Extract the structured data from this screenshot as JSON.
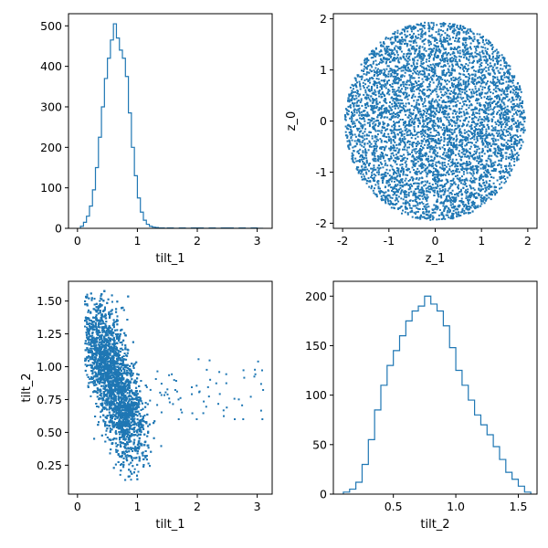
{
  "colors": {
    "series": "#1f77b4",
    "axes": "#000000",
    "background": "#ffffff"
  },
  "chart_data": [
    {
      "type": "histogram",
      "panel": "top-left",
      "histtype": "step",
      "xlabel": "tilt_1",
      "ylabel": "",
      "xlim": [
        -0.15,
        3.25
      ],
      "ylim": [
        0,
        530
      ],
      "xticks": [
        0,
        1,
        2,
        3
      ],
      "yticks": [
        0,
        100,
        200,
        300,
        400,
        500
      ],
      "bin_edges": [
        0.05,
        0.1,
        0.15,
        0.2,
        0.25,
        0.3,
        0.35,
        0.4,
        0.45,
        0.5,
        0.55,
        0.6,
        0.65,
        0.7,
        0.75,
        0.8,
        0.85,
        0.9,
        0.95,
        1.0,
        1.05,
        1.1,
        1.15,
        1.2,
        1.25,
        1.3,
        1.35,
        1.4,
        1.45,
        1.5,
        1.6,
        1.7,
        1.8,
        1.9,
        2.0,
        2.1,
        2.2,
        2.3,
        2.4,
        2.5,
        2.6,
        2.7,
        2.8,
        2.9,
        3.0,
        3.1
      ],
      "counts": [
        5,
        15,
        30,
        55,
        95,
        150,
        225,
        300,
        370,
        420,
        465,
        505,
        470,
        440,
        420,
        375,
        285,
        200,
        130,
        75,
        40,
        20,
        10,
        5,
        3,
        2,
        1,
        1,
        0,
        1,
        0,
        1,
        0,
        1,
        1,
        0,
        1,
        0,
        1,
        1,
        0,
        1,
        0,
        1,
        0
      ]
    },
    {
      "type": "scatter",
      "panel": "top-right",
      "xlabel": "z_1",
      "ylabel": "z_0",
      "xlim": [
        -2.2,
        2.2
      ],
      "ylim": [
        -2.1,
        2.1
      ],
      "xticks": [
        -2,
        -1,
        0,
        1,
        2
      ],
      "yticks": [
        -2,
        -1,
        0,
        1,
        2
      ],
      "distribution": {
        "shape": "disk",
        "center": [
          0.0,
          0.0
        ],
        "radius": 1.95,
        "points": 5200
      }
    },
    {
      "type": "scatter",
      "panel": "bottom-left",
      "xlabel": "tilt_1",
      "ylabel": "tilt_2",
      "xlim": [
        -0.15,
        3.25
      ],
      "ylim": [
        0.03,
        1.65
      ],
      "xticks": [
        0,
        1,
        2,
        3
      ],
      "yticks": [
        0.25,
        0.5,
        0.75,
        1.0,
        1.25,
        1.5
      ],
      "ytick_labels": [
        "0.25",
        "0.50",
        "0.75",
        "1.00",
        "1.25",
        "1.50"
      ],
      "distribution": {
        "shape": "band",
        "band_start": [
          0.3,
          1.3
        ],
        "band_end": [
          0.95,
          0.45
        ],
        "spread": 0.16,
        "points": 5200,
        "outlier_region": {
          "x": [
            1.1,
            3.1
          ],
          "y": [
            0.6,
            1.35
          ],
          "points": 70
        }
      }
    },
    {
      "type": "histogram",
      "panel": "bottom-right",
      "histtype": "step",
      "xlabel": "tilt_2",
      "ylabel": "",
      "xlim": [
        0.02,
        1.65
      ],
      "ylim": [
        0,
        215
      ],
      "xticks": [
        0.5,
        1.0,
        1.5
      ],
      "xtick_labels": [
        "0.5",
        "1.0",
        "1.5"
      ],
      "yticks": [
        0,
        50,
        100,
        150,
        200
      ],
      "bin_edges": [
        0.1,
        0.15,
        0.2,
        0.25,
        0.3,
        0.35,
        0.4,
        0.45,
        0.5,
        0.55,
        0.6,
        0.65,
        0.7,
        0.75,
        0.8,
        0.85,
        0.9,
        0.95,
        1.0,
        1.05,
        1.1,
        1.15,
        1.2,
        1.25,
        1.3,
        1.35,
        1.4,
        1.45,
        1.5,
        1.55,
        1.6
      ],
      "counts": [
        2,
        5,
        12,
        30,
        55,
        85,
        110,
        130,
        145,
        160,
        175,
        185,
        190,
        200,
        192,
        185,
        170,
        148,
        125,
        110,
        95,
        80,
        70,
        60,
        48,
        35,
        22,
        15,
        8,
        2
      ]
    }
  ]
}
